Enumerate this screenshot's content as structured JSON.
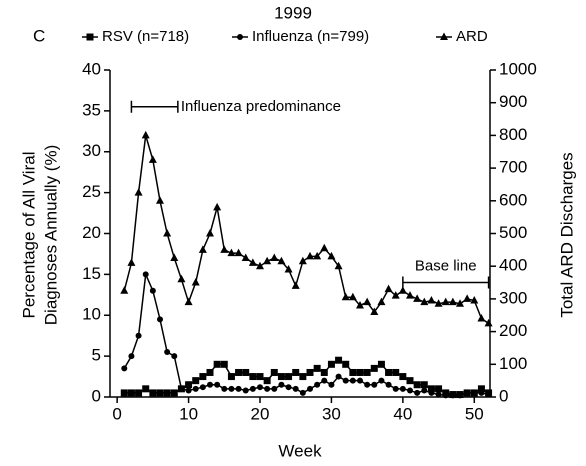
{
  "chart_data": {
    "type": "line",
    "title": "1999",
    "panel_label": "C",
    "xlabel": "Week",
    "ylabel": [
      "Percentage of All Viral",
      "Diagnoses Annually (%)"
    ],
    "y2label": "Total ARD Discharges",
    "x": [
      1,
      2,
      3,
      4,
      5,
      6,
      7,
      8,
      9,
      10,
      11,
      12,
      13,
      14,
      15,
      16,
      17,
      18,
      19,
      20,
      21,
      22,
      23,
      24,
      25,
      26,
      27,
      28,
      29,
      30,
      31,
      32,
      33,
      34,
      35,
      36,
      37,
      38,
      39,
      40,
      41,
      42,
      43,
      44,
      45,
      46,
      47,
      48,
      49,
      50,
      51,
      52
    ],
    "xlim": [
      -1,
      52.2
    ],
    "xticks": [
      0,
      10,
      20,
      30,
      40,
      50
    ],
    "ylim": [
      0,
      40
    ],
    "yticks": [
      0,
      5,
      10,
      15,
      20,
      25,
      30,
      35,
      40
    ],
    "y2lim": [
      0,
      1000
    ],
    "y2ticks": [
      0,
      100,
      200,
      300,
      400,
      500,
      600,
      700,
      800,
      900,
      1000
    ],
    "series": [
      {
        "name": "RSV (n=718)",
        "color": "#000000",
        "marker": "square",
        "values": [
          0.5,
          0.5,
          0.5,
          1,
          0.5,
          0.5,
          0.5,
          0.5,
          1,
          1.5,
          2,
          2.5,
          3,
          4,
          4,
          2.5,
          3,
          3,
          2.5,
          2.5,
          2,
          3,
          2.5,
          2.5,
          3,
          2.5,
          3,
          3.5,
          3,
          4,
          4.5,
          4,
          3,
          3,
          3,
          3.5,
          4,
          3,
          3,
          2.5,
          2,
          1.5,
          1.5,
          1,
          1,
          0.5,
          0.3,
          0.3,
          0.5,
          0.5,
          1,
          0.5
        ]
      },
      {
        "name": "Influenza (n=799)",
        "color": "#000000",
        "marker": "circle",
        "values": [
          3.5,
          5,
          7.5,
          15,
          13,
          9.5,
          5.5,
          5,
          1,
          0.8,
          1,
          1.2,
          1.5,
          1.5,
          1,
          1,
          1,
          0.8,
          1,
          1.2,
          1,
          1,
          1.5,
          1.2,
          1,
          0.5,
          1,
          1.5,
          2,
          1.5,
          2.5,
          2,
          2,
          2,
          1.5,
          1.5,
          2,
          1.5,
          1,
          1,
          0.8,
          0.5,
          0.8,
          0.5,
          0.3,
          0.2,
          0.2,
          0.2,
          0.5,
          0.5,
          0.5,
          0.3
        ]
      },
      {
        "name": "ARD",
        "color": "#000000",
        "marker": "triangle",
        "axis": "y2",
        "values": [
          325,
          410,
          625,
          800,
          725,
          600,
          500,
          425,
          360,
          290,
          350,
          450,
          500,
          580,
          450,
          440,
          440,
          425,
          410,
          400,
          415,
          425,
          415,
          390,
          340,
          415,
          430,
          430,
          455,
          430,
          400,
          305,
          305,
          280,
          290,
          260,
          290,
          330,
          310,
          325,
          310,
          300,
          290,
          295,
          285,
          290,
          290,
          285,
          300,
          295,
          240,
          225
        ]
      }
    ],
    "annotations": [
      {
        "text": "Influenza predominance",
        "x": [
          2,
          8.5
        ],
        "y": 35.5
      },
      {
        "text": "Base line",
        "x": [
          40,
          52
        ],
        "y": 14
      }
    ]
  }
}
